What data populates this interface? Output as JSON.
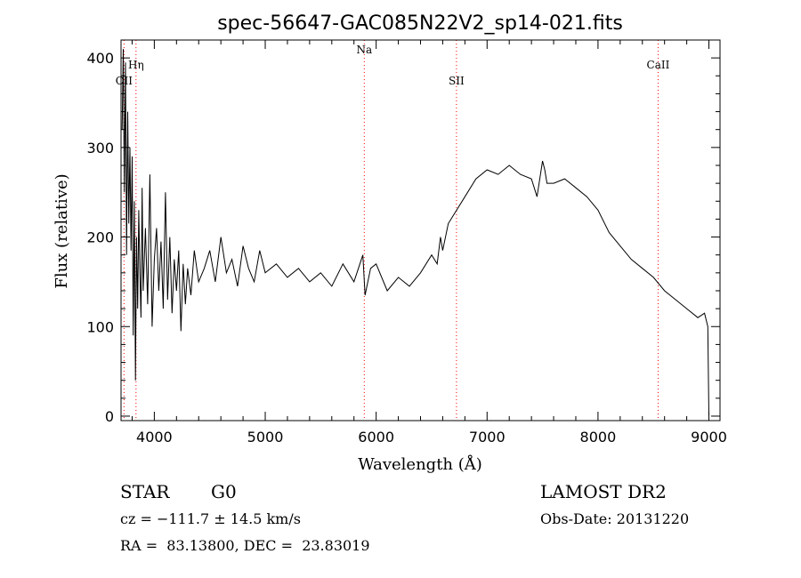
{
  "chart_data": {
    "type": "line",
    "title": "spec-56647-GAC085N22V2_sp14-021.fits",
    "xlabel": "Wavelength (Å)",
    "ylabel": "Flux (relative)",
    "xlim": [
      3700,
      9100
    ],
    "ylim": [
      -5,
      420
    ],
    "xticks": [
      4000,
      5000,
      6000,
      7000,
      8000,
      9000
    ],
    "yticks": [
      0,
      100,
      200,
      300,
      400
    ],
    "grid": false,
    "line_color": "#000000",
    "marker_color": "#ff0000",
    "lines": [
      {
        "label": "OII",
        "x": 3727
      },
      {
        "label": "Hη",
        "x": 3835
      },
      {
        "label": "Na",
        "x": 5893
      },
      {
        "label": "SII",
        "x": 6724
      },
      {
        "label": "CaII",
        "x": 8542
      }
    ],
    "series": [
      {
        "x": [
          3710,
          3720,
          3730,
          3740,
          3750,
          3760,
          3770,
          3780,
          3790,
          3800,
          3810,
          3820,
          3830,
          3840,
          3850,
          3860,
          3870,
          3880,
          3890,
          3900,
          3920,
          3940,
          3960,
          3980,
          4000,
          4020,
          4040,
          4060,
          4080,
          4100,
          4120,
          4140,
          4160,
          4180,
          4200,
          4220,
          4240,
          4260,
          4280,
          4300,
          4330,
          4360,
          4400,
          4450,
          4500,
          4550,
          4600,
          4650,
          4700,
          4750,
          4800,
          4850,
          4900,
          4950,
          5000,
          5100,
          5200,
          5300,
          5400,
          5500,
          5600,
          5700,
          5800,
          5880,
          5900,
          5950,
          6000,
          6100,
          6200,
          6300,
          6400,
          6500,
          6550,
          6580,
          6600,
          6650,
          6700,
          6800,
          6900,
          7000,
          7100,
          7200,
          7300,
          7400,
          7450,
          7500,
          7520,
          7540,
          7600,
          7700,
          7800,
          7900,
          8000,
          8100,
          8200,
          8300,
          8400,
          8500,
          8600,
          8700,
          8800,
          8900,
          8960,
          8990,
          9000
        ],
        "y": [
          320,
          410,
          250,
          395,
          180,
          340,
          215,
          300,
          185,
          290,
          90,
          240,
          40,
          200,
          120,
          230,
          160,
          110,
          255,
          140,
          210,
          125,
          270,
          100,
          175,
          210,
          140,
          195,
          120,
          250,
          130,
          200,
          115,
          175,
          140,
          185,
          95,
          170,
          125,
          165,
          135,
          185,
          150,
          165,
          185,
          150,
          200,
          160,
          175,
          145,
          190,
          165,
          150,
          185,
          160,
          170,
          155,
          165,
          150,
          160,
          145,
          170,
          150,
          180,
          135,
          165,
          170,
          140,
          155,
          145,
          160,
          180,
          170,
          200,
          185,
          215,
          225,
          245,
          265,
          275,
          270,
          280,
          270,
          265,
          245,
          285,
          275,
          260,
          260,
          265,
          255,
          245,
          230,
          205,
          190,
          175,
          165,
          155,
          140,
          130,
          120,
          110,
          115,
          100,
          0
        ]
      }
    ]
  },
  "info": {
    "object_class": "STAR",
    "subclass": "G0",
    "survey": "LAMOST DR2",
    "cz": "cz = −111.7 ± 14.5 km/s",
    "obs_date": "Obs-Date: 20131220",
    "coords": "RA =  83.13800, DEC =  23.83019"
  }
}
